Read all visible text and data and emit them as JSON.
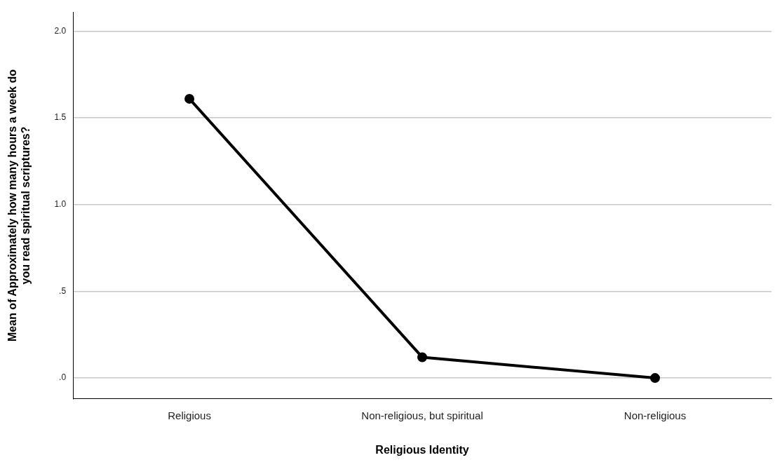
{
  "chart_data": {
    "type": "line",
    "xlabel": "Religious Identity",
    "ylabel": "Mean of Approximately how many hours a week do you read spiritual scriptures?",
    "categories": [
      "Religious",
      "Non-religious, but spiritual",
      "Non-religious"
    ],
    "series": [
      {
        "color": "#000000",
        "values": [
          1.61,
          0.12,
          0.0
        ]
      }
    ],
    "ylim": [
      -0.12,
      2.11
    ],
    "yticks": [
      {
        "value": 0,
        "label": ".0"
      },
      {
        "value": 0.5,
        "label": ".5"
      },
      {
        "value": 1,
        "label": "1.0"
      },
      {
        "value": 1.5,
        "label": "1.5"
      },
      {
        "value": 2,
        "label": "2.0"
      }
    ],
    "grid": "y",
    "marker": "circle",
    "line_style": "solid"
  }
}
